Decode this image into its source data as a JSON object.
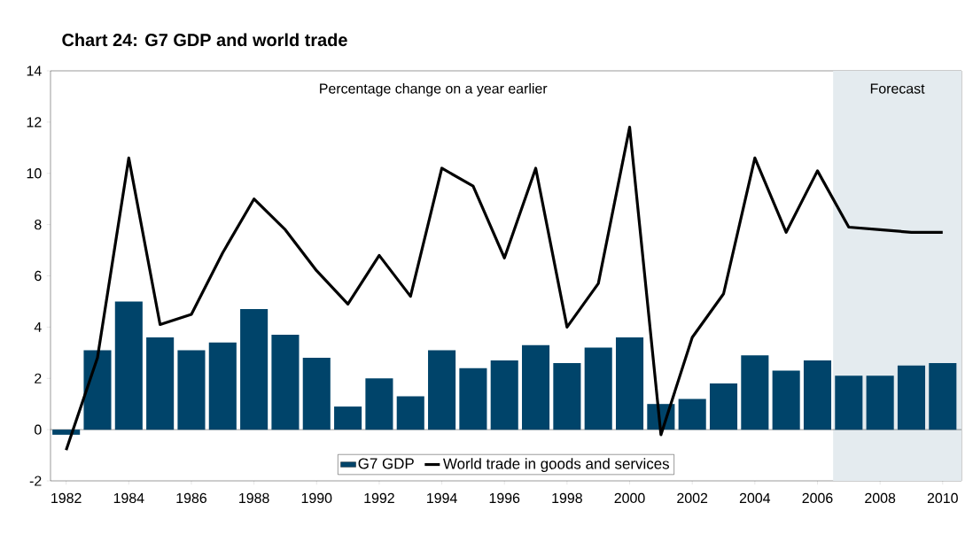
{
  "chart_data": {
    "type": "bar",
    "title": "Chart 24: G7 GDP and world trade",
    "annotations": [
      "Percentage change on a year earlier"
    ],
    "x": [
      1982,
      1983,
      1984,
      1985,
      1986,
      1987,
      1988,
      1989,
      1990,
      1991,
      1992,
      1993,
      1994,
      1995,
      1996,
      1997,
      1998,
      1999,
      2000,
      2001,
      2002,
      2003,
      2004,
      2005,
      2006,
      2007,
      2008,
      2009,
      2010
    ],
    "series": [
      {
        "name": "G7 GDP",
        "color": "#00446a",
        "values": [
          -0.2,
          3.1,
          5.0,
          3.6,
          3.1,
          3.4,
          4.7,
          3.7,
          2.8,
          0.9,
          2.0,
          1.3,
          3.1,
          2.4,
          2.7,
          3.3,
          2.6,
          3.2,
          3.6,
          1.0,
          1.2,
          1.8,
          2.9,
          2.3,
          2.7,
          2.1,
          2.1,
          2.5,
          2.6
        ]
      },
      {
        "name": "World trade in goods and services",
        "type": "line",
        "color": "#000000",
        "values": [
          -0.8,
          2.8,
          10.6,
          4.1,
          4.5,
          6.9,
          9.0,
          7.8,
          6.2,
          4.9,
          6.8,
          5.2,
          10.2,
          9.5,
          6.7,
          10.2,
          4.0,
          5.7,
          11.8,
          -0.2,
          3.6,
          5.3,
          10.6,
          7.7,
          10.1,
          7.9,
          7.8,
          7.7,
          7.7
        ]
      }
    ],
    "bands": [
      {
        "axis": "x",
        "from": 2006.5,
        "to": 2010.6,
        "label": "Forecast",
        "color": "#e4ebef"
      }
    ],
    "xlim": [
      1981.5,
      2010.6
    ],
    "xticks": [
      1982,
      1984,
      1986,
      1988,
      1990,
      1992,
      1994,
      1996,
      1998,
      2000,
      2002,
      2004,
      2006,
      2008,
      2010
    ],
    "ylim": [
      -2,
      14
    ],
    "yticks": [
      -2,
      0,
      2,
      4,
      6,
      8,
      10,
      12,
      14
    ],
    "legend": "bottom"
  }
}
